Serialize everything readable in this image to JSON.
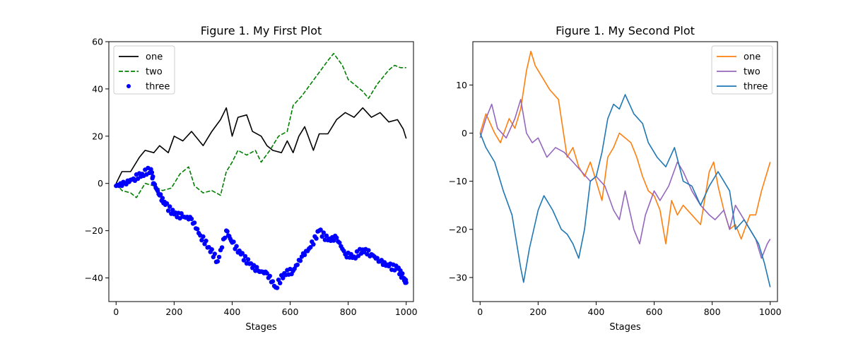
{
  "chart_data": [
    {
      "type": "line",
      "title": "Figure 1. My First Plot",
      "xlabel": "Stages",
      "ylabel": "",
      "xlim": [
        -25,
        1025
      ],
      "ylim": [
        -50,
        60
      ],
      "xticks": [
        0,
        200,
        400,
        600,
        800,
        1000
      ],
      "yticks": [
        -40,
        -20,
        0,
        20,
        40,
        60
      ],
      "legend_loc": "upper-left",
      "series": [
        {
          "name": "one",
          "style": "solid",
          "color": "#000000",
          "points": [
            [
              0,
              0
            ],
            [
              20,
              5
            ],
            [
              50,
              5
            ],
            [
              80,
              11
            ],
            [
              100,
              14
            ],
            [
              130,
              13
            ],
            [
              150,
              16
            ],
            [
              180,
              13
            ],
            [
              200,
              20
            ],
            [
              230,
              18
            ],
            [
              260,
              22
            ],
            [
              300,
              16
            ],
            [
              330,
              22
            ],
            [
              360,
              27
            ],
            [
              380,
              32
            ],
            [
              400,
              20
            ],
            [
              420,
              28
            ],
            [
              450,
              29
            ],
            [
              470,
              22
            ],
            [
              500,
              20
            ],
            [
              520,
              16
            ],
            [
              540,
              14
            ],
            [
              570,
              13
            ],
            [
              590,
              18
            ],
            [
              610,
              13
            ],
            [
              630,
              20
            ],
            [
              650,
              24
            ],
            [
              680,
              14
            ],
            [
              700,
              21
            ],
            [
              730,
              21
            ],
            [
              760,
              27
            ],
            [
              790,
              30
            ],
            [
              820,
              28
            ],
            [
              850,
              32
            ],
            [
              880,
              28
            ],
            [
              910,
              30
            ],
            [
              940,
              26
            ],
            [
              970,
              27
            ],
            [
              990,
              23
            ],
            [
              1000,
              19
            ]
          ]
        },
        {
          "name": "two",
          "style": "dashed",
          "color": "#008000",
          "points": [
            [
              0,
              0
            ],
            [
              20,
              -3
            ],
            [
              50,
              -4
            ],
            [
              70,
              -6
            ],
            [
              100,
              0
            ],
            [
              130,
              -1
            ],
            [
              160,
              -3
            ],
            [
              190,
              -2
            ],
            [
              220,
              4
            ],
            [
              250,
              7
            ],
            [
              270,
              -1
            ],
            [
              300,
              -4
            ],
            [
              330,
              -3
            ],
            [
              360,
              -5
            ],
            [
              380,
              5
            ],
            [
              400,
              9
            ],
            [
              420,
              14
            ],
            [
              450,
              12
            ],
            [
              480,
              14
            ],
            [
              500,
              9
            ],
            [
              530,
              14
            ],
            [
              560,
              20
            ],
            [
              590,
              22
            ],
            [
              610,
              33
            ],
            [
              640,
              37
            ],
            [
              670,
              42
            ],
            [
              700,
              47
            ],
            [
              730,
              52
            ],
            [
              750,
              55
            ],
            [
              780,
              50
            ],
            [
              800,
              44
            ],
            [
              820,
              42
            ],
            [
              850,
              39
            ],
            [
              870,
              36
            ],
            [
              900,
              42
            ],
            [
              920,
              45
            ],
            [
              940,
              48
            ],
            [
              960,
              50
            ],
            [
              980,
              49
            ],
            [
              1000,
              49
            ]
          ]
        },
        {
          "name": "three",
          "style": "dots",
          "color": "#0000ff",
          "points": [
            [
              0,
              -1
            ],
            [
              30,
              0
            ],
            [
              60,
              2
            ],
            [
              90,
              4
            ],
            [
              120,
              6
            ],
            [
              130,
              0
            ],
            [
              150,
              -5
            ],
            [
              170,
              -9
            ],
            [
              200,
              -13
            ],
            [
              230,
              -14
            ],
            [
              260,
              -15
            ],
            [
              290,
              -22
            ],
            [
              320,
              -27
            ],
            [
              350,
              -33
            ],
            [
              380,
              -20
            ],
            [
              400,
              -25
            ],
            [
              430,
              -30
            ],
            [
              460,
              -34
            ],
            [
              490,
              -37
            ],
            [
              520,
              -38
            ],
            [
              550,
              -44
            ],
            [
              580,
              -38
            ],
            [
              610,
              -37
            ],
            [
              640,
              -31
            ],
            [
              670,
              -27
            ],
            [
              700,
              -20
            ],
            [
              730,
              -24
            ],
            [
              760,
              -23
            ],
            [
              790,
              -30
            ],
            [
              820,
              -31
            ],
            [
              850,
              -28
            ],
            [
              880,
              -30
            ],
            [
              910,
              -33
            ],
            [
              940,
              -35
            ],
            [
              970,
              -36
            ],
            [
              990,
              -40
            ],
            [
              1000,
              -42
            ]
          ]
        }
      ]
    },
    {
      "type": "line",
      "title": "Figure 1. My Second Plot",
      "xlabel": "Stages",
      "ylabel": "",
      "xlim": [
        -25,
        1025
      ],
      "ylim": [
        -35,
        19
      ],
      "xticks": [
        0,
        200,
        400,
        600,
        800,
        1000
      ],
      "yticks": [
        -30,
        -20,
        -10,
        0,
        10
      ],
      "legend_loc": "upper-right",
      "series": [
        {
          "name": "one",
          "style": "solid",
          "color": "#ff7f0e",
          "points": [
            [
              0,
              0
            ],
            [
              20,
              4
            ],
            [
              50,
              0
            ],
            [
              70,
              -2
            ],
            [
              100,
              3
            ],
            [
              120,
              1
            ],
            [
              140,
              5
            ],
            [
              160,
              13
            ],
            [
              175,
              17
            ],
            [
              190,
              14
            ],
            [
              210,
              12
            ],
            [
              240,
              9
            ],
            [
              270,
              7
            ],
            [
              300,
              -5
            ],
            [
              320,
              -3
            ],
            [
              340,
              -7
            ],
            [
              360,
              -9
            ],
            [
              380,
              -6
            ],
            [
              400,
              -10
            ],
            [
              420,
              -14
            ],
            [
              440,
              -5
            ],
            [
              460,
              -3
            ],
            [
              480,
              0
            ],
            [
              500,
              -1
            ],
            [
              520,
              -2
            ],
            [
              540,
              -5
            ],
            [
              560,
              -9
            ],
            [
              580,
              -12
            ],
            [
              600,
              -13
            ],
            [
              620,
              -16
            ],
            [
              640,
              -23
            ],
            [
              660,
              -14
            ],
            [
              680,
              -17
            ],
            [
              700,
              -15
            ],
            [
              730,
              -17
            ],
            [
              760,
              -19
            ],
            [
              790,
              -8
            ],
            [
              805,
              -6
            ],
            [
              820,
              -11
            ],
            [
              840,
              -16
            ],
            [
              860,
              -20
            ],
            [
              880,
              -19
            ],
            [
              900,
              -22
            ],
            [
              930,
              -17
            ],
            [
              950,
              -17
            ],
            [
              970,
              -12
            ],
            [
              990,
              -8
            ],
            [
              1000,
              -6
            ]
          ]
        },
        {
          "name": "two",
          "style": "solid",
          "color": "#9467bd",
          "points": [
            [
              0,
              -1
            ],
            [
              20,
              3
            ],
            [
              40,
              6
            ],
            [
              60,
              1
            ],
            [
              90,
              -1
            ],
            [
              120,
              3
            ],
            [
              140,
              7
            ],
            [
              160,
              0
            ],
            [
              180,
              -2
            ],
            [
              200,
              -1
            ],
            [
              230,
              -5
            ],
            [
              260,
              -3
            ],
            [
              290,
              -4
            ],
            [
              320,
              -6
            ],
            [
              350,
              -8
            ],
            [
              380,
              -10
            ],
            [
              400,
              -9
            ],
            [
              430,
              -11
            ],
            [
              460,
              -16
            ],
            [
              480,
              -18
            ],
            [
              500,
              -12
            ],
            [
              530,
              -20
            ],
            [
              550,
              -23
            ],
            [
              570,
              -17
            ],
            [
              600,
              -12
            ],
            [
              620,
              -14
            ],
            [
              650,
              -11
            ],
            [
              680,
              -6
            ],
            [
              700,
              -8
            ],
            [
              730,
              -12
            ],
            [
              760,
              -15
            ],
            [
              790,
              -17
            ],
            [
              810,
              -18
            ],
            [
              840,
              -16
            ],
            [
              860,
              -20
            ],
            [
              880,
              -15
            ],
            [
              900,
              -17
            ],
            [
              930,
              -20
            ],
            [
              950,
              -22
            ],
            [
              970,
              -26
            ],
            [
              990,
              -23
            ],
            [
              1000,
              -22
            ]
          ]
        },
        {
          "name": "three",
          "style": "solid",
          "color": "#1f77b4",
          "points": [
            [
              0,
              0
            ],
            [
              20,
              -3
            ],
            [
              50,
              -6
            ],
            [
              80,
              -12
            ],
            [
              110,
              -17
            ],
            [
              140,
              -28
            ],
            [
              150,
              -31
            ],
            [
              170,
              -24
            ],
            [
              200,
              -16
            ],
            [
              220,
              -13
            ],
            [
              250,
              -16
            ],
            [
              280,
              -20
            ],
            [
              300,
              -21
            ],
            [
              320,
              -23
            ],
            [
              340,
              -26
            ],
            [
              360,
              -20
            ],
            [
              380,
              -10
            ],
            [
              400,
              -9
            ],
            [
              420,
              -4
            ],
            [
              440,
              3
            ],
            [
              460,
              6
            ],
            [
              480,
              5
            ],
            [
              500,
              8
            ],
            [
              530,
              4
            ],
            [
              560,
              2
            ],
            [
              580,
              -2
            ],
            [
              610,
              -5
            ],
            [
              640,
              -7
            ],
            [
              670,
              -3
            ],
            [
              700,
              -10
            ],
            [
              730,
              -11
            ],
            [
              760,
              -15
            ],
            [
              790,
              -11
            ],
            [
              820,
              -8
            ],
            [
              840,
              -10
            ],
            [
              860,
              -12
            ],
            [
              880,
              -20
            ],
            [
              910,
              -18
            ],
            [
              940,
              -21
            ],
            [
              960,
              -23
            ],
            [
              980,
              -27
            ],
            [
              1000,
              -32
            ]
          ]
        }
      ]
    }
  ]
}
